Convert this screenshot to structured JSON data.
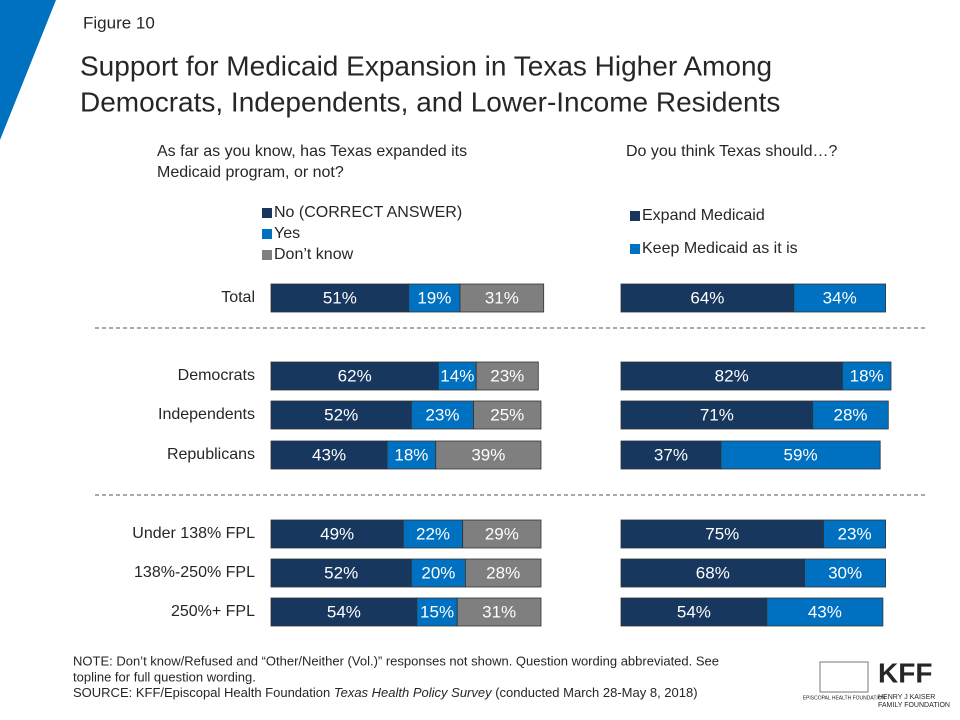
{
  "header": {
    "figure": "Figure 10",
    "title": [
      "Support for Medicaid Expansion in Texas Higher Among",
      "Democrats, Independents, and Lower-Income Residents"
    ]
  },
  "chart_data": {
    "type": "bar",
    "stacked": true,
    "orientation": "horizontal",
    "categories": [
      "Total",
      "Democrats",
      "Independents",
      "Republicans",
      "Under 138% FPL",
      "138%-250% FPL",
      "250%+ FPL"
    ],
    "panels": [
      {
        "subtitle": [
          "As far as you know, has Texas expanded its",
          "Medicaid program, or not?"
        ],
        "series": [
          {
            "name": "No (CORRECT ANSWER)",
            "color": "#17375e",
            "values": [
              51,
              62,
              52,
              43,
              49,
              52,
              54
            ],
            "value_labels": [
              "51%",
              "62%",
              "52%",
              "43%",
              "49%",
              "52%",
              "54%"
            ]
          },
          {
            "name": "Yes",
            "color": "#0070c0",
            "values": [
              19,
              14,
              23,
              18,
              22,
              20,
              15
            ],
            "value_labels": [
              "19%",
              "14%",
              "23%",
              "18%",
              "22%",
              "20%",
              "15%"
            ]
          },
          {
            "name": "Don’t know",
            "color": "#7f7f7f",
            "values": [
              31,
              23,
              25,
              39,
              29,
              28,
              31
            ],
            "value_labels": [
              "31%",
              "23%",
              "25%",
              "39%",
              "29%",
              "28%",
              "31%"
            ]
          }
        ]
      },
      {
        "subtitle": [
          "Do you think Texas should…?"
        ],
        "series": [
          {
            "name": "Expand Medicaid",
            "color": "#17375e",
            "values": [
              64,
              82,
              71,
              37,
              75,
              68,
              54
            ],
            "value_labels": [
              "64%",
              "82%",
              "71%",
              "37%",
              "75%",
              "68%",
              "54%"
            ]
          },
          {
            "name": "Keep Medicaid as it is",
            "color": "#0070c0",
            "values": [
              34,
              18,
              28,
              59,
              23,
              30,
              43
            ],
            "value_labels": [
              "34%",
              "18%",
              "28%",
              "59%",
              "23%",
              "30%",
              "43%"
            ]
          }
        ]
      }
    ]
  },
  "footer": {
    "note": [
      "NOTE: Don’t know/Refused and “Other/Neither (Vol.)” responses not shown. Question wording abbreviated. See",
      "topline for full question wording."
    ],
    "source": [
      "SOURCE: KFF/Episcopal Health Foundation ",
      "Texas Health Policy Survey",
      " (conducted March 28-May 8, 2018)"
    ],
    "logos": {
      "ehf": "EPISCOPAL HEALTH FOUNDATION",
      "kff": "KFF",
      "kff_name": [
        "HENRY J KAISER",
        "FAMILY FOUNDATION"
      ]
    }
  }
}
